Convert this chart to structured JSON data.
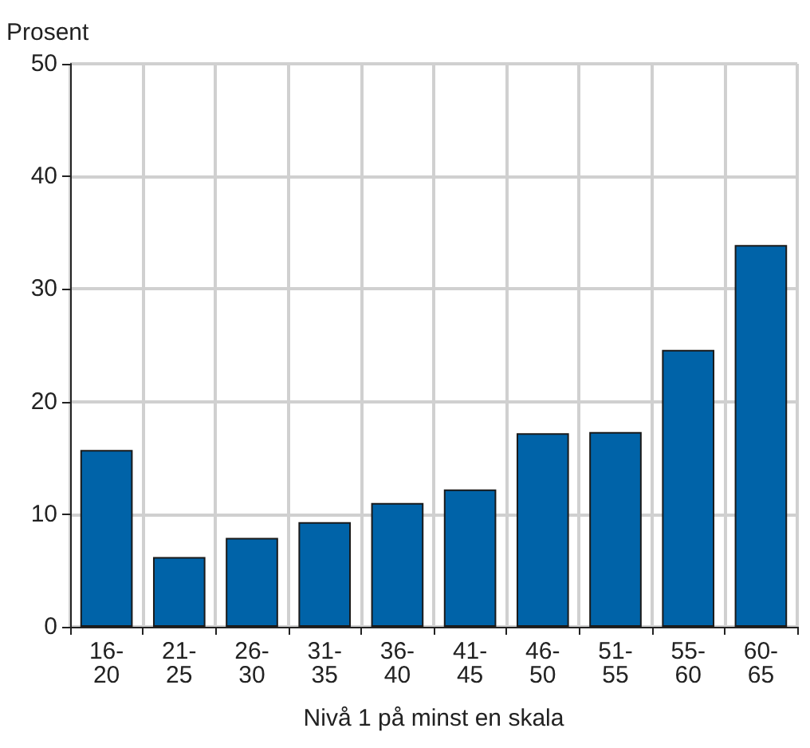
{
  "chart_data": {
    "type": "bar",
    "ylabel": "Prosent",
    "xlabel": "Nivå 1 på minst en skala",
    "categories": [
      "16-20",
      "21-25",
      "26-30",
      "31-35",
      "36-40",
      "41-45",
      "46-50",
      "51-55",
      "55-60",
      "60-65"
    ],
    "values": [
      15.7,
      6.2,
      7.9,
      9.3,
      11.0,
      12.2,
      17.2,
      17.3,
      24.6,
      33.9
    ],
    "color": "#0063a8",
    "ylim": [
      0,
      50
    ],
    "yticks": [
      0,
      10,
      20,
      30,
      40,
      50
    ],
    "grid": true
  }
}
